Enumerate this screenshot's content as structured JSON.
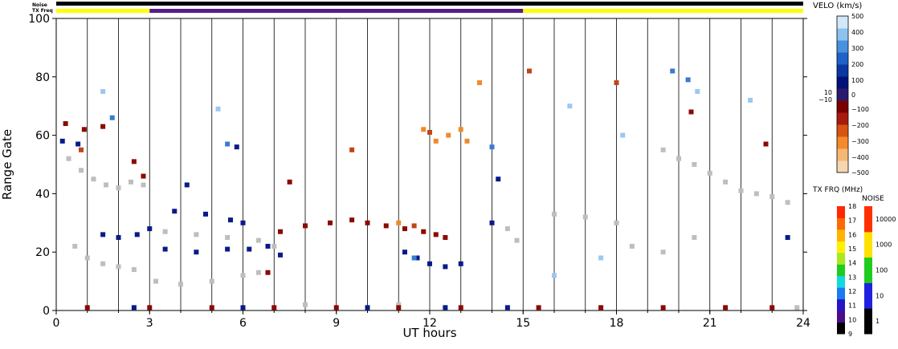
{
  "labels": {
    "noise": "Noise",
    "tx_freq": "TX Freq",
    "velo_title": "VELO (km/s)",
    "txfrq_title": "TX FRQ (MHz)",
    "noise_title": "NOISE"
  },
  "chart_data": {
    "type": "heatmap",
    "title": "",
    "xlabel": "UT hours",
    "ylabel": "Range Gate",
    "xlim": [
      0,
      24
    ],
    "ylim": [
      0,
      100
    ],
    "x_ticks": [
      "0",
      "3",
      "6",
      "9",
      "12",
      "15",
      "18",
      "21",
      "24"
    ],
    "y_ticks": [
      "0",
      "20",
      "40",
      "60",
      "80",
      "100"
    ],
    "hour_gridlines": true,
    "noise_bar": [
      {
        "from": 0,
        "to": 24,
        "color": "#000000"
      }
    ],
    "txfreq_bar": [
      {
        "from": 0,
        "to": 3,
        "color": "#ffff00"
      },
      {
        "from": 3,
        "to": 15,
        "color": "#5a1a8a"
      },
      {
        "from": 15,
        "to": 24,
        "color": "#ffff00"
      }
    ],
    "velocity_colorbar": {
      "unit": "km/s",
      "colors": [
        "#f5d6b0",
        "#f7b774",
        "#f58a2a",
        "#d9540f",
        "#a81a0d",
        "#7a0000",
        "#2b1a6e",
        "#00127a",
        "#0b37a3",
        "#1f62c9",
        "#4891e0",
        "#8cc2f0",
        "#d0e8fa"
      ],
      "ticks": [
        "500",
        "400",
        "300",
        "200",
        "100",
        "0",
        "10",
        "−10",
        "−100",
        "−200",
        "−300",
        "−400",
        "−500"
      ]
    },
    "txfreq_colorbar": {
      "colors": [
        "#000000",
        "#4b0c8a",
        "#2515c8",
        "#1a7af0",
        "#12d8e0",
        "#1ecc20",
        "#a8e81e",
        "#fff000",
        "#ffb400",
        "#ff6a00",
        "#ff2800"
      ],
      "ticks": [
        "18",
        "17",
        "16",
        "15",
        "14",
        "13",
        "12",
        "11",
        "10",
        "9"
      ]
    },
    "noise_colorbar": {
      "colors": [
        "#000000",
        "#2020e0",
        "#20cc20",
        "#ffe000",
        "#ff3000"
      ],
      "ticks": [
        "10000",
        "1000",
        "100",
        "10",
        "1"
      ]
    },
    "scatter_categories": {
      "ground": "#bebebe",
      "neg_dark": "#8a0a00",
      "neg_mid": "#c0451a",
      "neg_light": "#f08a2a",
      "pos_dark": "#0a1a8a",
      "pos_light": "#3a7ad0",
      "pos_pale": "#9cc8f0"
    },
    "series": [
      {
        "category": "ground",
        "points": [
          [
            0.4,
            52
          ],
          [
            0.8,
            48
          ],
          [
            1.2,
            45
          ],
          [
            1.6,
            43
          ],
          [
            2.0,
            42
          ],
          [
            2.4,
            44
          ],
          [
            2.8,
            43
          ],
          [
            0.6,
            22
          ],
          [
            1.0,
            18
          ],
          [
            1.5,
            16
          ],
          [
            2.0,
            15
          ],
          [
            2.5,
            14
          ],
          [
            3.2,
            10
          ],
          [
            4.0,
            9
          ],
          [
            5.0,
            10
          ],
          [
            6.0,
            12
          ],
          [
            6.5,
            13
          ],
          [
            3.5,
            27
          ],
          [
            4.5,
            26
          ],
          [
            5.5,
            25
          ],
          [
            6.5,
            24
          ],
          [
            7.0,
            22
          ],
          [
            14.5,
            28
          ],
          [
            14.8,
            24
          ],
          [
            16.0,
            33
          ],
          [
            17.0,
            32
          ],
          [
            18.0,
            30
          ],
          [
            19.5,
            55
          ],
          [
            20.0,
            52
          ],
          [
            20.5,
            50
          ],
          [
            21.0,
            47
          ],
          [
            21.5,
            44
          ],
          [
            22.0,
            41
          ],
          [
            22.5,
            40
          ],
          [
            23.0,
            39
          ],
          [
            23.5,
            37
          ],
          [
            18.5,
            22
          ],
          [
            19.5,
            20
          ],
          [
            20.5,
            25
          ],
          [
            8.0,
            2
          ],
          [
            11.0,
            2
          ],
          [
            23.8,
            1
          ]
        ]
      },
      {
        "category": "neg_dark",
        "points": [
          [
            0.3,
            64
          ],
          [
            0.9,
            62
          ],
          [
            1.5,
            63
          ],
          [
            2.5,
            51
          ],
          [
            2.8,
            46
          ],
          [
            6.8,
            13
          ],
          [
            7.2,
            27
          ],
          [
            8.0,
            29
          ],
          [
            8.8,
            30
          ],
          [
            9.5,
            31
          ],
          [
            10.0,
            30
          ],
          [
            10.6,
            29
          ],
          [
            11.2,
            28
          ],
          [
            11.8,
            27
          ],
          [
            12.2,
            26
          ],
          [
            12.5,
            25
          ],
          [
            7.5,
            44
          ],
          [
            1.0,
            1
          ],
          [
            3.0,
            1
          ],
          [
            5.0,
            1
          ],
          [
            7.0,
            1
          ],
          [
            9.0,
            1
          ],
          [
            11.0,
            1
          ],
          [
            13.0,
            1
          ],
          [
            15.5,
            1
          ],
          [
            17.5,
            1
          ],
          [
            19.5,
            1
          ],
          [
            21.5,
            1
          ],
          [
            23.0,
            1
          ],
          [
            20.4,
            68
          ],
          [
            22.8,
            57
          ]
        ]
      },
      {
        "category": "neg_mid",
        "points": [
          [
            0.8,
            55
          ],
          [
            9.5,
            55
          ],
          [
            11.5,
            29
          ],
          [
            12.0,
            61
          ],
          [
            15.2,
            82
          ],
          [
            18.0,
            78
          ]
        ]
      },
      {
        "category": "neg_light",
        "points": [
          [
            11.0,
            30
          ],
          [
            11.8,
            62
          ],
          [
            12.2,
            58
          ],
          [
            12.6,
            60
          ],
          [
            13.0,
            62
          ],
          [
            13.2,
            58
          ],
          [
            13.6,
            78
          ]
        ]
      },
      {
        "category": "pos_dark",
        "points": [
          [
            0.2,
            58
          ],
          [
            0.7,
            57
          ],
          [
            1.5,
            26
          ],
          [
            2.0,
            25
          ],
          [
            2.6,
            26
          ],
          [
            3.0,
            28
          ],
          [
            3.5,
            21
          ],
          [
            4.5,
            20
          ],
          [
            5.5,
            21
          ],
          [
            6.2,
            21
          ],
          [
            6.8,
            22
          ],
          [
            7.2,
            19
          ],
          [
            3.8,
            34
          ],
          [
            4.8,
            33
          ],
          [
            5.6,
            31
          ],
          [
            6.0,
            30
          ],
          [
            5.8,
            56
          ],
          [
            11.2,
            20
          ],
          [
            11.6,
            18
          ],
          [
            12.0,
            16
          ],
          [
            12.5,
            15
          ],
          [
            13.0,
            16
          ],
          [
            14.0,
            30
          ],
          [
            14.2,
            45
          ],
          [
            2.5,
            1
          ],
          [
            6.0,
            1
          ],
          [
            10.0,
            1
          ],
          [
            12.5,
            1
          ],
          [
            14.5,
            1
          ],
          [
            4.2,
            43
          ],
          [
            23.5,
            25
          ]
        ]
      },
      {
        "category": "pos_light",
        "points": [
          [
            1.8,
            66
          ],
          [
            5.5,
            57
          ],
          [
            11.5,
            18
          ],
          [
            14.0,
            56
          ],
          [
            19.8,
            82
          ],
          [
            20.3,
            79
          ]
        ]
      },
      {
        "category": "pos_pale",
        "points": [
          [
            1.5,
            75
          ],
          [
            5.2,
            69
          ],
          [
            16.5,
            70
          ],
          [
            18.2,
            60
          ],
          [
            20.6,
            75
          ],
          [
            22.3,
            72
          ],
          [
            16.0,
            12
          ],
          [
            17.5,
            18
          ]
        ]
      }
    ]
  }
}
